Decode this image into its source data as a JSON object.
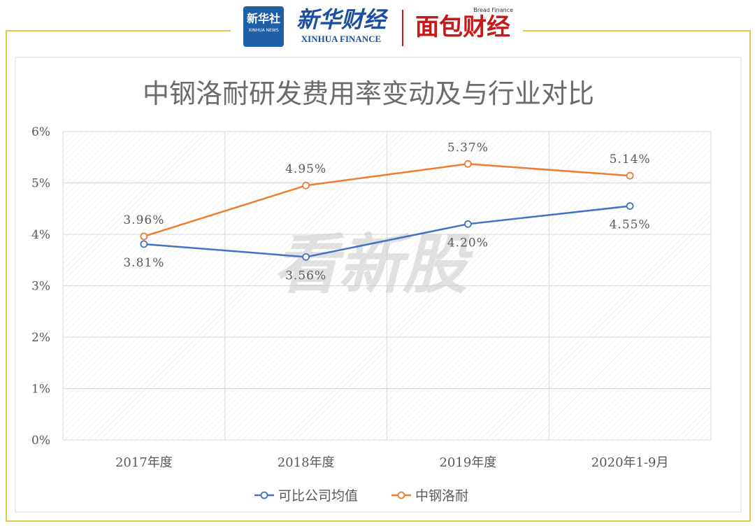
{
  "branding": {
    "xinhua_logo_cn": "新华社",
    "xinhua_logo_en": "XINHUA NEWS",
    "xinhua_finance_cn": "新华财经",
    "xinhua_finance_en": "XINHUA FINANCE",
    "bread_finance_en": "Bread Finance",
    "bread_finance_cn": "面包财经",
    "watermark": "看新股"
  },
  "colors": {
    "frame": "#e8c34a",
    "series_blue": "#4472c4",
    "series_orange": "#ed7d31",
    "grid": "#d9d9d9",
    "text": "#595959"
  },
  "chart_data": {
    "type": "line",
    "title": "中钢洛耐研发费用率变动及与行业对比",
    "categories": [
      "2017年度",
      "2018年度",
      "2019年度",
      "2020年1-9月"
    ],
    "y_ticks": [
      "0%",
      "1%",
      "2%",
      "3%",
      "4%",
      "5%",
      "6%"
    ],
    "ylim": [
      0,
      6
    ],
    "series": [
      {
        "name": "可比公司均值",
        "values": [
          3.81,
          3.56,
          4.2,
          4.55
        ],
        "labels": [
          "3.81%",
          "3.56%",
          "4.20%",
          "4.55%"
        ],
        "color": "#4472c4"
      },
      {
        "name": "中钢洛耐",
        "values": [
          3.96,
          4.95,
          5.37,
          5.14
        ],
        "labels": [
          "3.96%",
          "4.95%",
          "5.37%",
          "5.14%"
        ],
        "color": "#ed7d31"
      }
    ],
    "grid": true,
    "legend_position": "bottom"
  }
}
